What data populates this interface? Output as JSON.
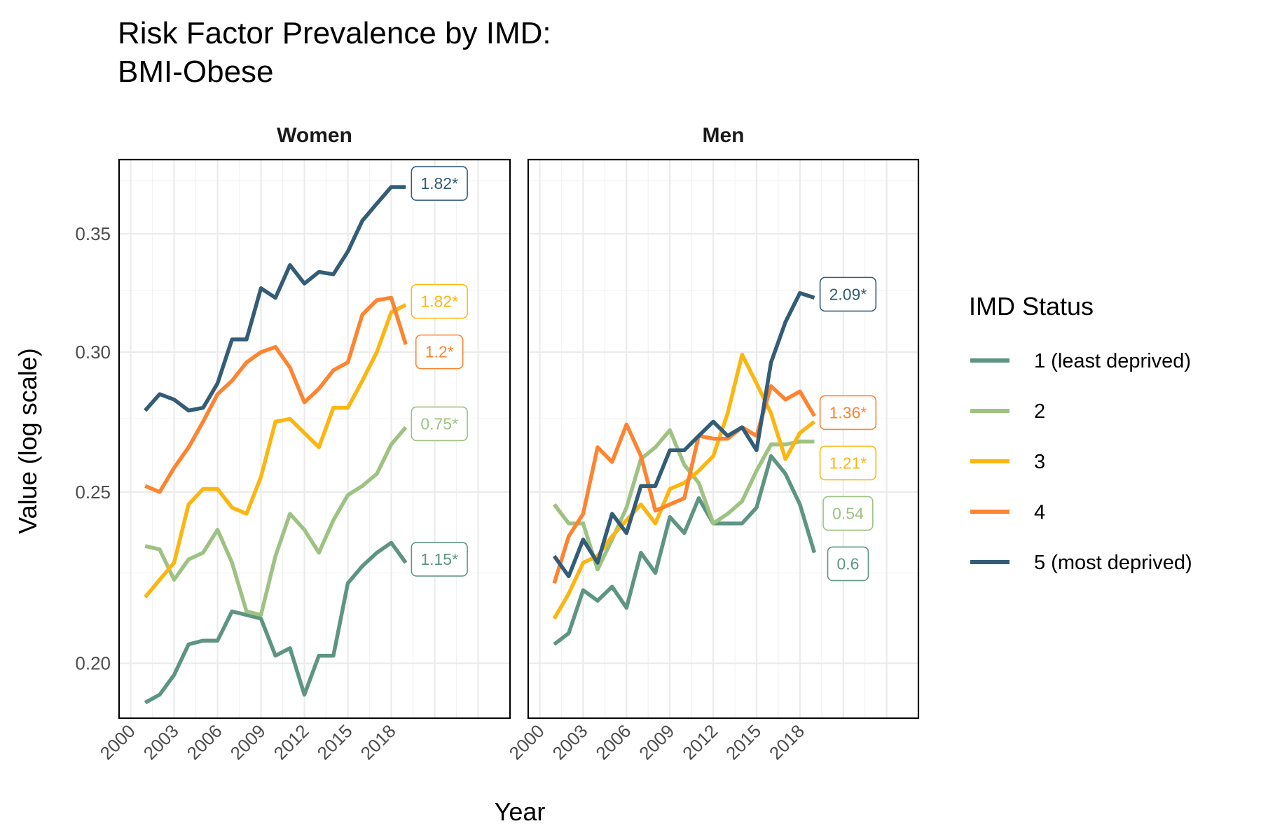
{
  "chart_data": {
    "type": "line",
    "title_line1": "Risk Factor Prevalence by IMD:",
    "title_line2": "BMI-Obese",
    "xlabel": "Year",
    "ylabel": "Value (log scale)",
    "y_scale": "log",
    "y_ticks": [
      "0.20",
      "0.25",
      "0.30",
      "0.35"
    ],
    "y_tick_values": [
      0.2,
      0.25,
      0.3,
      0.35
    ],
    "x_ticks": [
      "2000",
      "2003",
      "2006",
      "2009",
      "2012",
      "2015",
      "2018"
    ],
    "x_tick_values": [
      2000,
      2003,
      2006,
      2009,
      2012,
      2015,
      2018
    ],
    "x_range": [
      1999.2,
      2026.2
    ],
    "y_range": [
      0.1862,
      0.3855
    ],
    "legend_title": "IMD Status",
    "legend_position": "right",
    "grid": true,
    "series_meta": [
      {
        "key": "1",
        "name": "1 (least deprived)",
        "color": "#5e9582"
      },
      {
        "key": "2",
        "name": "2",
        "color": "#9ec283"
      },
      {
        "key": "3",
        "name": "3",
        "color": "#fbb612"
      },
      {
        "key": "4",
        "name": "4",
        "color": "#fd8431"
      },
      {
        "key": "5",
        "name": "5 (most deprived)",
        "color": "#335c77"
      }
    ],
    "years": [
      2001,
      2002,
      2003,
      2004,
      2005,
      2006,
      2007,
      2008,
      2009,
      2010,
      2011,
      2012,
      2013,
      2014,
      2015,
      2016,
      2017,
      2018,
      2019
    ],
    "panels": [
      {
        "label": "Women",
        "series": [
          {
            "key": "1",
            "values": [
              0.19,
              0.192,
              0.197,
              0.205,
              0.206,
              0.206,
              0.214,
              0.213,
              0.212,
              0.202,
              0.204,
              0.192,
              0.202,
              0.202,
              0.222,
              0.227,
              0.231,
              0.234,
              0.228
            ],
            "end_label": "1.15*"
          },
          {
            "key": "2",
            "values": [
              0.233,
              0.232,
              0.223,
              0.229,
              0.231,
              0.238,
              0.228,
              0.214,
              0.213,
              0.23,
              0.243,
              0.238,
              0.231,
              0.241,
              0.249,
              0.252,
              0.256,
              0.266,
              0.272
            ],
            "end_label": "0.75*"
          },
          {
            "key": "3",
            "values": [
              0.218,
              0.223,
              0.228,
              0.246,
              0.251,
              0.251,
              0.245,
              0.243,
              0.255,
              0.274,
              0.275,
              0.27,
              0.265,
              0.279,
              0.279,
              0.289,
              0.3,
              0.316,
              0.319
            ],
            "end_label": "1.82*"
          },
          {
            "key": "4",
            "values": [
              0.252,
              0.25,
              0.258,
              0.265,
              0.274,
              0.284,
              0.289,
              0.296,
              0.3,
              0.302,
              0.294,
              0.281,
              0.286,
              0.293,
              0.296,
              0.315,
              0.321,
              0.322,
              0.303
            ],
            "end_label": "1.2*"
          },
          {
            "key": "5",
            "values": [
              0.278,
              0.284,
              0.282,
              0.278,
              0.279,
              0.288,
              0.305,
              0.305,
              0.326,
              0.322,
              0.336,
              0.328,
              0.333,
              0.332,
              0.342,
              0.356,
              0.364,
              0.372,
              0.372
            ],
            "end_label": "1.82*"
          }
        ]
      },
      {
        "label": "Men",
        "series": [
          {
            "key": "1",
            "values": [
              0.205,
              0.208,
              0.22,
              0.217,
              0.221,
              0.215,
              0.231,
              0.225,
              0.242,
              0.237,
              0.248,
              0.24,
              0.24,
              0.24,
              0.245,
              0.262,
              0.256,
              0.246,
              0.231
            ],
            "end_label": "0.6"
          },
          {
            "key": "2",
            "values": [
              0.246,
              0.24,
              0.24,
              0.226,
              0.235,
              0.245,
              0.261,
              0.265,
              0.271,
              0.259,
              0.253,
              0.24,
              0.243,
              0.247,
              0.257,
              0.266,
              0.266,
              0.267,
              0.267
            ],
            "end_label": "0.54"
          },
          {
            "key": "3",
            "values": [
              0.212,
              0.219,
              0.228,
              0.23,
              0.236,
              0.241,
              0.246,
              0.24,
              0.251,
              0.253,
              0.257,
              0.262,
              0.277,
              0.299,
              0.288,
              0.277,
              0.261,
              0.27,
              0.274
            ],
            "end_label": "1.21*"
          },
          {
            "key": "4",
            "values": [
              0.222,
              0.236,
              0.243,
              0.265,
              0.26,
              0.273,
              0.262,
              0.244,
              0.246,
              0.248,
              0.269,
              0.268,
              0.268,
              0.272,
              0.269,
              0.287,
              0.282,
              0.285,
              0.276
            ],
            "end_label": "1.36*"
          },
          {
            "key": "5",
            "values": [
              0.23,
              0.224,
              0.235,
              0.228,
              0.243,
              0.237,
              0.252,
              0.252,
              0.264,
              0.264,
              0.269,
              0.274,
              0.269,
              0.272,
              0.264,
              0.296,
              0.312,
              0.324,
              0.322
            ],
            "end_label": "2.09*"
          }
        ]
      }
    ]
  }
}
